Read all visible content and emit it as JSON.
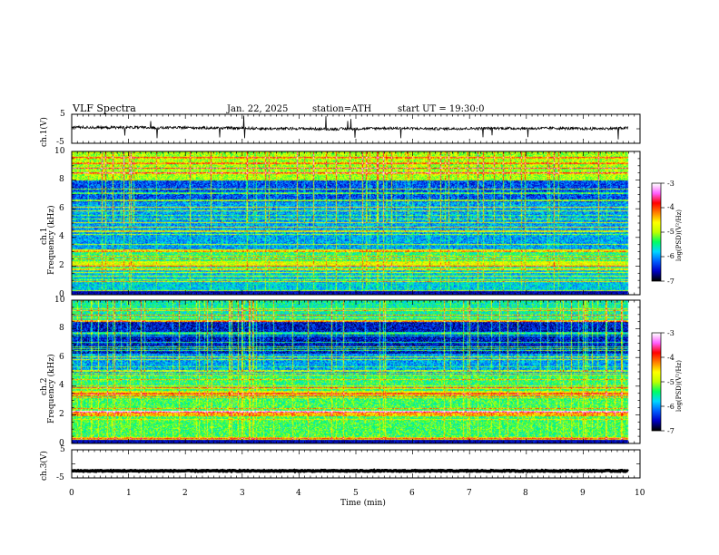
{
  "header": {
    "title": "VLF  Spectra",
    "date": "Jan. 22, 2025",
    "station": "station=ATH",
    "start": "start  UT  =   19:30:0"
  },
  "chart_data": [
    {
      "type": "line",
      "name": "ch1-waveform",
      "ylabel": "ch.1(V)",
      "ylim": [
        -5,
        5
      ],
      "y_ticks": [
        "5",
        "-5"
      ],
      "xlim": [
        0,
        10
      ],
      "x": [
        0,
        0.5,
        1,
        1.5,
        2,
        2.5,
        3,
        3.5,
        4,
        4.5,
        5,
        5.5,
        6,
        6.5,
        7,
        7.5,
        8,
        8.5,
        9,
        9.5,
        9.8
      ],
      "values": [
        0.6,
        0.4,
        0.5,
        0.3,
        0.4,
        0.3,
        0.2,
        0.0,
        0.1,
        -0.1,
        0.0,
        0.2,
        0.1,
        0.0,
        0.1,
        0.2,
        0.1,
        0.2,
        0.0,
        0.1,
        0.3
      ]
    },
    {
      "type": "heatmap",
      "name": "ch1-spectrogram",
      "ylabel_channel": "ch.1",
      "ylabel": "Frequency  (kHz)",
      "xlim": [
        0,
        10
      ],
      "ylim": [
        0,
        10
      ],
      "y_ticks": [
        "0",
        "2",
        "4",
        "6",
        "8",
        "10"
      ],
      "colorbar": {
        "label": "log(PSD)(V²/Hz)",
        "range": [
          -7,
          -3
        ],
        "ticks": [
          "-3",
          "-4",
          "-5",
          "-6",
          "-7"
        ]
      }
    },
    {
      "type": "heatmap",
      "name": "ch2-spectrogram",
      "ylabel_channel": "ch.2",
      "ylabel": "Frequency  (kHz)",
      "xlim": [
        0,
        10
      ],
      "ylim": [
        0,
        10
      ],
      "y_ticks": [
        "0",
        "2",
        "4",
        "6",
        "8",
        "10"
      ],
      "colorbar": {
        "label": "log(PSD)(V²/Hz)",
        "range": [
          -7,
          -3
        ],
        "ticks": [
          "-3",
          "-4",
          "-5",
          "-6",
          "-7"
        ]
      }
    },
    {
      "type": "line",
      "name": "ch3-waveform",
      "ylabel": "ch.3(V)",
      "ylim": [
        -5,
        5
      ],
      "y_ticks": [
        "5",
        "-5"
      ],
      "xlim": [
        0,
        10
      ],
      "x": [
        0,
        9.8
      ],
      "values": [
        -2.5,
        -2.5
      ]
    }
  ],
  "xaxis": {
    "label": "Time  (min)",
    "ticks": [
      "0",
      "1",
      "2",
      "3",
      "4",
      "5",
      "6",
      "7",
      "8",
      "9",
      "10"
    ]
  },
  "colormap": [
    "#000000",
    "#0000c8",
    "#0060ff",
    "#00d8ff",
    "#00ff60",
    "#c0ff00",
    "#ffff00",
    "#ff8000",
    "#ff0000",
    "#ff60ff",
    "#ffffff"
  ]
}
